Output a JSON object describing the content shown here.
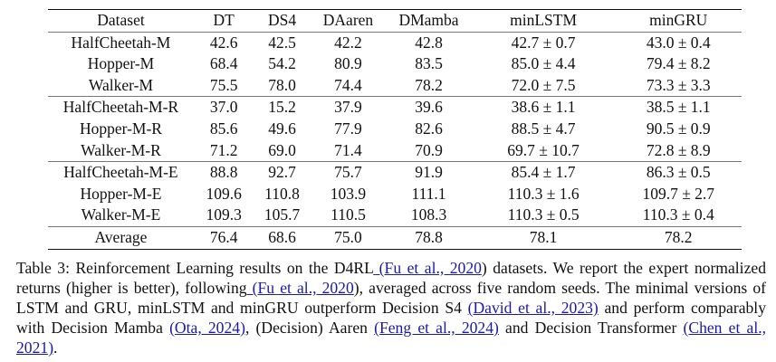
{
  "table": {
    "headers": [
      "Dataset",
      "DT",
      "DS4",
      "DAaren",
      "DMamba",
      "minLSTM",
      "minGRU"
    ],
    "rows": [
      [
        "HalfCheetah-M",
        "42.6",
        "42.5",
        "42.2",
        "42.8",
        "42.7 ± 0.7",
        "43.0 ± 0.4"
      ],
      [
        "Hopper-M",
        "68.4",
        "54.2",
        "80.9",
        "83.5",
        "85.0 ± 4.4",
        "79.4 ± 8.2"
      ],
      [
        "Walker-M",
        "75.5",
        "78.0",
        "74.4",
        "78.2",
        "72.0 ± 7.5",
        "73.3 ± 3.3"
      ],
      [
        "HalfCheetah-M-R",
        "37.0",
        "15.2",
        "37.9",
        "39.6",
        "38.6 ± 1.1",
        "38.5 ± 1.1"
      ],
      [
        "Hopper-M-R",
        "85.6",
        "49.6",
        "77.9",
        "82.6",
        "88.5 ± 4.7",
        "90.5 ± 0.9"
      ],
      [
        "Walker-M-R",
        "71.2",
        "69.0",
        "71.4",
        "70.9",
        "69.7 ± 10.7",
        "72.8 ± 8.9"
      ],
      [
        "HalfCheetah-M-E",
        "88.8",
        "92.7",
        "75.7",
        "91.9",
        "85.4 ± 1.7",
        "86.3 ± 0.5"
      ],
      [
        "Hopper-M-E",
        "109.6",
        "110.8",
        "103.9",
        "111.1",
        "110.3 ± 1.6",
        "109.7 ± 2.7"
      ],
      [
        "Walker-M-E",
        "109.3",
        "105.7",
        "110.5",
        "108.3",
        "110.3 ± 0.5",
        "110.3 ± 0.4"
      ],
      [
        "Average",
        "76.4",
        "68.6",
        "75.0",
        "78.8",
        "78.1",
        "78.2"
      ]
    ]
  },
  "caption": {
    "t1": "Table 3: Reinforcement Learning results on the D4RL",
    "l1": " (Fu et al., 2020",
    "t2": ") datasets.  We report the expert normalized returns (higher is better), following",
    "l2": " (Fu et al., 2020",
    "t3": "), averaged across five random seeds. The minimal versions of LSTM and GRU, minLSTM and minGRU outperform Decision S4 ",
    "l3": "(David et al., 2023)",
    "t4": " and perform comparably with Decision Mamba ",
    "l4": "(Ota, 2024)",
    "t5": ", (Decision) Aaren ",
    "l5": "(Feng et al., 2024)",
    "t6": " and Decision Transformer ",
    "l6": "(Chen et al., 2021)",
    "t7": ".",
    "link_color": "#1a1aa6"
  }
}
